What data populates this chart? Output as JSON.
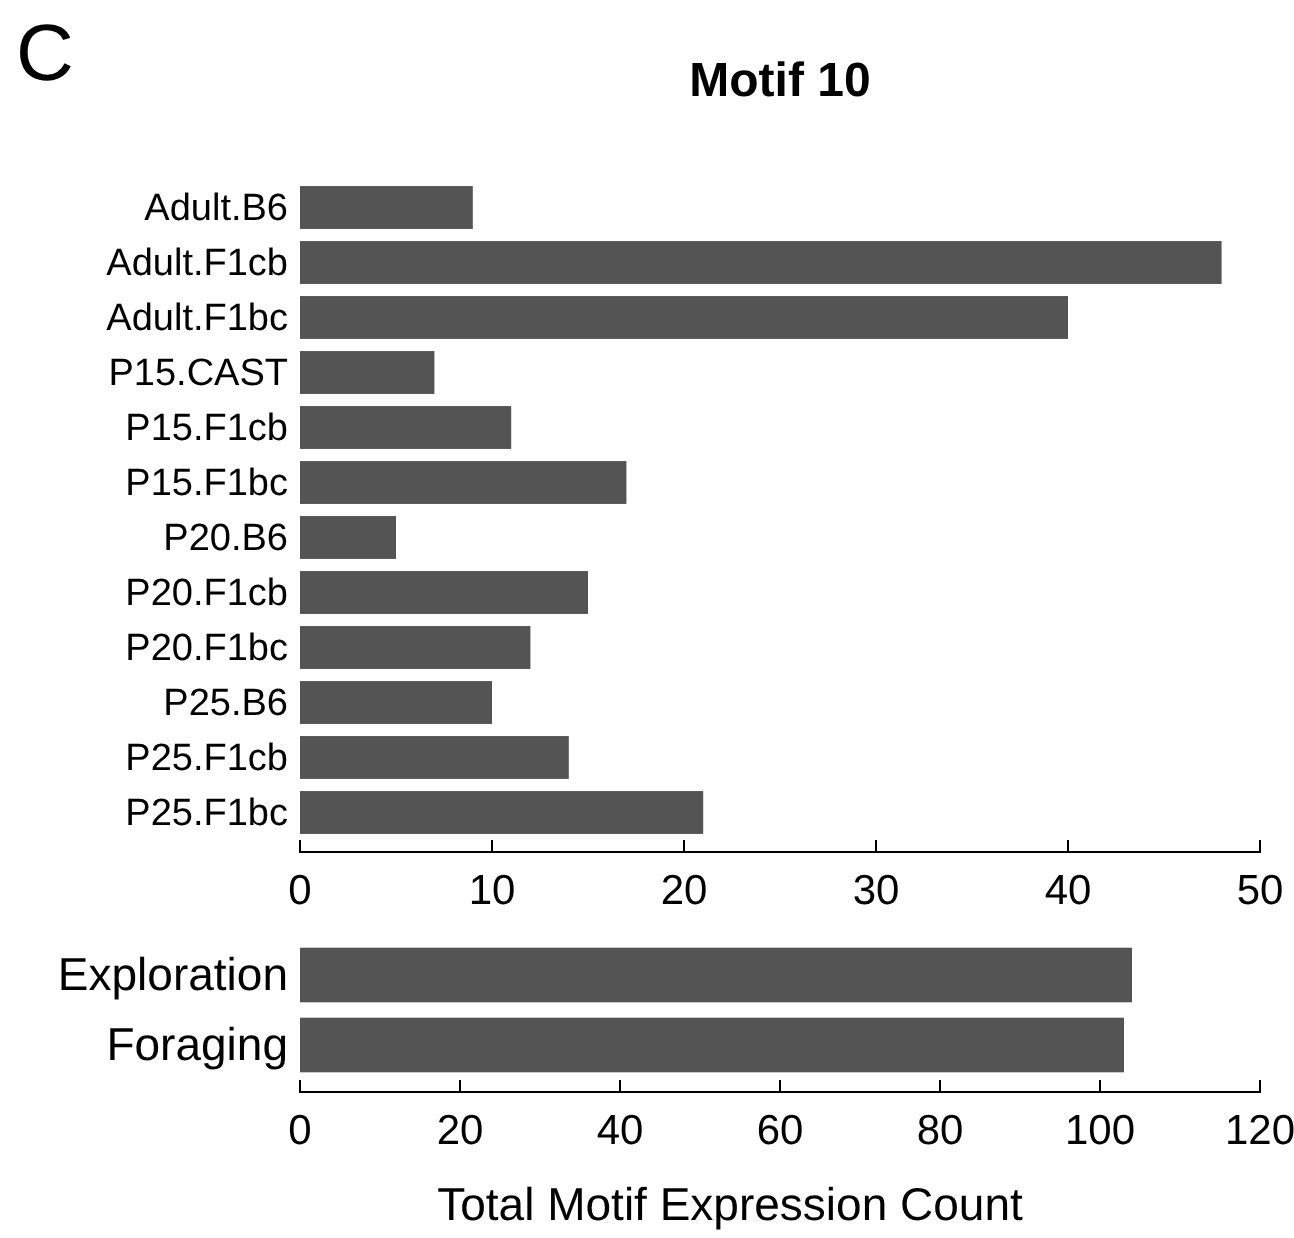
{
  "chart_data": [
    {
      "type": "bar",
      "orientation": "horizontal",
      "title": "Motif 10",
      "annotations": [
        "C"
      ],
      "categories": [
        "Adult.B6",
        "Adult.F1cb",
        "Adult.F1bc",
        "P15.CAST",
        "P15.F1cb",
        "P15.F1bc",
        "P20.B6",
        "P20.F1cb",
        "P20.F1bc",
        "P25.B6",
        "P25.F1cb",
        "P25.F1bc"
      ],
      "values": [
        9,
        48,
        40,
        7,
        11,
        17,
        5,
        15,
        12,
        10,
        14,
        21
      ],
      "color": "#545454",
      "xlim": [
        0,
        50
      ],
      "xticks": [
        0,
        10,
        20,
        30,
        40,
        50
      ]
    },
    {
      "type": "bar",
      "orientation": "horizontal",
      "xlabel": "Total Motif Expression Count",
      "categories": [
        "Exploration",
        "Foraging"
      ],
      "values": [
        104,
        103
      ],
      "color": "#545454",
      "xlim": [
        0,
        120
      ],
      "xticks": [
        0,
        20,
        40,
        60,
        80,
        100,
        120
      ]
    }
  ]
}
